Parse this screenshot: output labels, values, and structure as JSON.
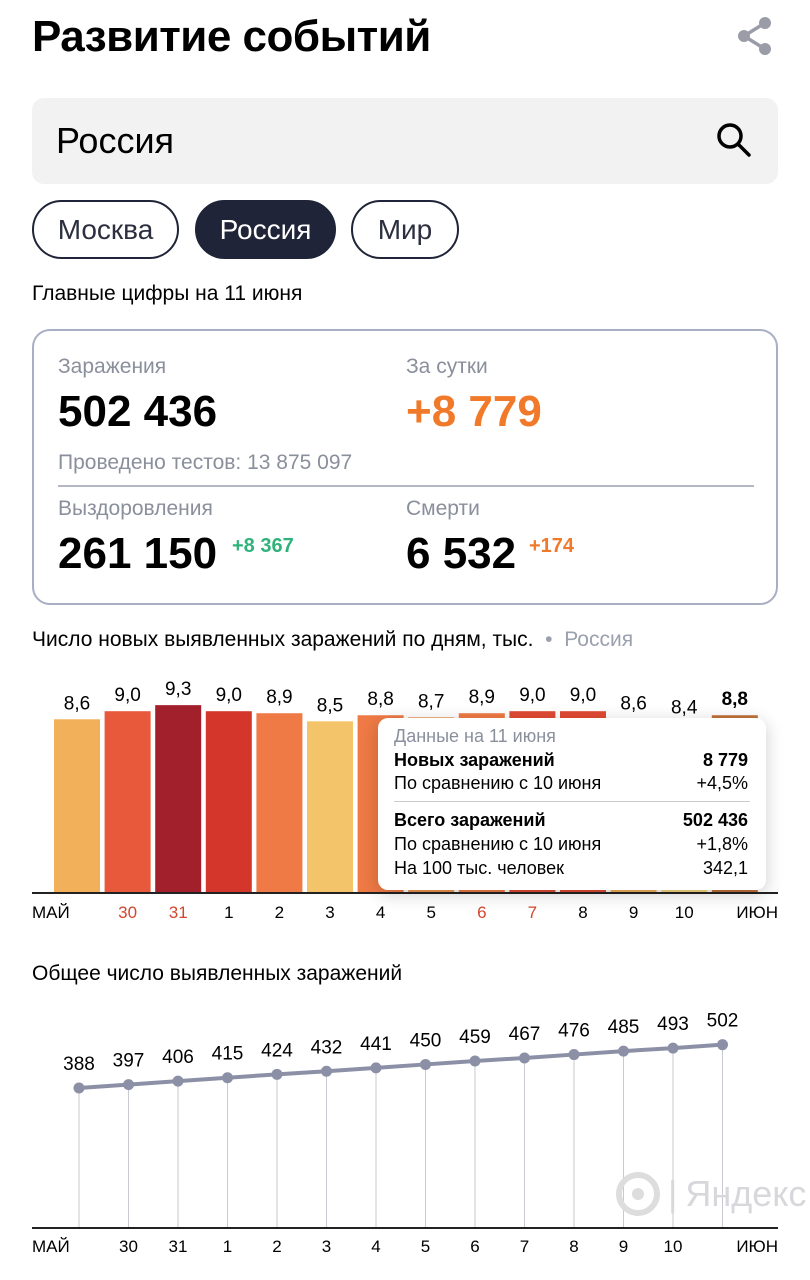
{
  "header": {
    "title": "Развитие событий",
    "share_icon": "share-icon"
  },
  "search": {
    "value": "Россия"
  },
  "chips": [
    {
      "label": "Москва",
      "active": false
    },
    {
      "label": "Россия",
      "active": true
    },
    {
      "label": "Мир",
      "active": false
    }
  ],
  "subtitle": "Главные цифры на 11 июня",
  "stats": {
    "infections_label": "Заражения",
    "infections": "502 436",
    "day_label": "За сутки",
    "day": "+8 779",
    "tests": "Проведено тестов: 13 875 097",
    "recovered_label": "Выздоровления",
    "recovered": "261 150",
    "recovered_delta": "+8 367",
    "deaths_label": "Смерти",
    "deaths": "6 532",
    "deaths_delta": "+174",
    "colors": {
      "orange": "#f07a2a",
      "green": "#2fb37a"
    }
  },
  "tooltip": {
    "date": "Данные на 11 июня",
    "new_label": "Новых заражений",
    "new_value": "8 779",
    "cmp1_label": "По сравнению с 10 июня",
    "cmp1_value": "+4,5%",
    "total_label": "Всего заражений",
    "total_value": "502 436",
    "cmp2_label": "По сравнению с 10 июня",
    "cmp2_value": "+1,8%",
    "per100_label": "На 100 тыс. человек",
    "per100_value": "342,1"
  },
  "watermark": "Яндекс",
  "chart_data": [
    {
      "type": "bar",
      "title": "Число новых выявленных заражений по дням, тыс.",
      "region": "Россия",
      "categories": [
        "МАЙ",
        "30",
        "31",
        "1",
        "2",
        "3",
        "4",
        "5",
        "6",
        "7",
        "8",
        "9",
        "10",
        "ИЮН"
      ],
      "red_labels": [
        "30",
        "31",
        "6",
        "7"
      ],
      "values": [
        8.6,
        9.0,
        9.3,
        9.0,
        8.9,
        8.5,
        8.8,
        8.7,
        8.9,
        9.0,
        9.0,
        8.6,
        8.4,
        8.8
      ],
      "value_labels": [
        "8,6",
        "9,0",
        "9,3",
        "9,0",
        "8,9",
        "8,5",
        "8,8",
        "8,7",
        "8,9",
        "9,0",
        "9,0",
        "8,6",
        "8,4",
        "8,8"
      ],
      "colors": [
        "#f2b05a",
        "#e8583a",
        "#a21f2c",
        "#d5362b",
        "#ef7a45",
        "#f4c46a",
        "#ef7a45",
        "#f0954f",
        "#ef7a45",
        "#e04a33",
        "#e04a33",
        "#f2b05a",
        "#f6d77f",
        "#c07038"
      ],
      "ylim": [
        0,
        9.3
      ]
    },
    {
      "type": "line",
      "title": "Общее число выявленных заражений",
      "categories": [
        "МАЙ",
        "30",
        "31",
        "1",
        "2",
        "3",
        "4",
        "5",
        "6",
        "7",
        "8",
        "9",
        "10",
        "ИЮН"
      ],
      "values": [
        388,
        397,
        406,
        415,
        424,
        432,
        441,
        450,
        459,
        467,
        476,
        485,
        493,
        502
      ],
      "value_labels": [
        "388",
        "397",
        "406",
        "415",
        "424",
        "432",
        "441",
        "450",
        "459",
        "467",
        "476",
        "485",
        "493",
        "502"
      ],
      "color": "#8b90a6"
    }
  ]
}
